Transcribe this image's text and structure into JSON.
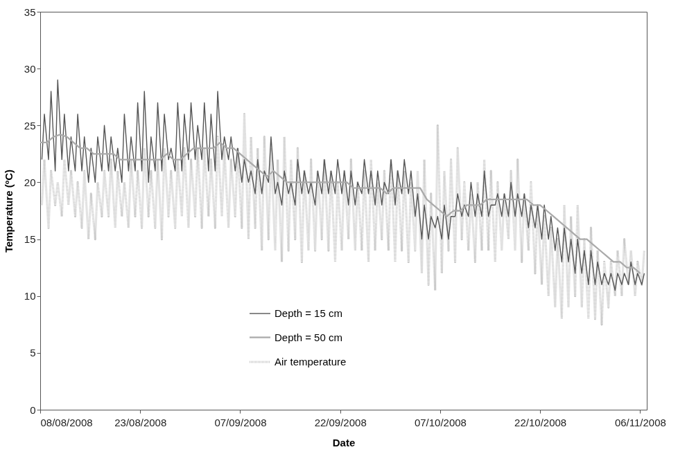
{
  "chart_data": {
    "type": "line",
    "xlabel": "Date",
    "ylabel": "Temperature (ºC)",
    "x": [
      "2008-08-08T06:00",
      "2008-08-08T15:00",
      "2008-08-09T06:00",
      "2008-08-09T15:00",
      "2008-08-10T06:00",
      "2008-08-10T15:00",
      "2008-08-11T06:00",
      "2008-08-11T15:00",
      "2008-08-12T06:00",
      "2008-08-12T15:00",
      "2008-08-13T06:00",
      "2008-08-13T15:00",
      "2008-08-14T06:00",
      "2008-08-14T15:00",
      "2008-08-15T06:00",
      "2008-08-15T15:00",
      "2008-08-16T06:00",
      "2008-08-16T15:00",
      "2008-08-17T06:00",
      "2008-08-17T15:00",
      "2008-08-18T06:00",
      "2008-08-18T15:00",
      "2008-08-19T06:00",
      "2008-08-19T15:00",
      "2008-08-20T06:00",
      "2008-08-20T15:00",
      "2008-08-21T06:00",
      "2008-08-21T15:00",
      "2008-08-22T06:00",
      "2008-08-22T15:00",
      "2008-08-23T06:00",
      "2008-08-23T15:00",
      "2008-08-24T06:00",
      "2008-08-24T15:00",
      "2008-08-25T06:00",
      "2008-08-25T15:00",
      "2008-08-26T06:00",
      "2008-08-26T15:00",
      "2008-08-27T06:00",
      "2008-08-27T15:00",
      "2008-08-28T06:00",
      "2008-08-28T15:00",
      "2008-08-29T06:00",
      "2008-08-29T15:00",
      "2008-08-30T06:00",
      "2008-08-30T15:00",
      "2008-08-31T06:00",
      "2008-08-31T15:00",
      "2008-09-01T06:00",
      "2008-09-01T15:00",
      "2008-09-02T06:00",
      "2008-09-02T15:00",
      "2008-09-03T06:00",
      "2008-09-03T15:00",
      "2008-09-04T06:00",
      "2008-09-04T15:00",
      "2008-09-05T06:00",
      "2008-09-05T15:00",
      "2008-09-06T06:00",
      "2008-09-06T15:00",
      "2008-09-07T06:00",
      "2008-09-07T15:00",
      "2008-09-08T06:00",
      "2008-09-08T15:00",
      "2008-09-09T06:00",
      "2008-09-09T15:00",
      "2008-09-10T06:00",
      "2008-09-10T15:00",
      "2008-09-11T06:00",
      "2008-09-11T15:00",
      "2008-09-12T06:00",
      "2008-09-12T15:00",
      "2008-09-13T06:00",
      "2008-09-13T15:00",
      "2008-09-14T06:00",
      "2008-09-14T15:00",
      "2008-09-15T06:00",
      "2008-09-15T15:00",
      "2008-09-16T06:00",
      "2008-09-16T15:00",
      "2008-09-17T06:00",
      "2008-09-17T15:00",
      "2008-09-18T06:00",
      "2008-09-18T15:00",
      "2008-09-19T06:00",
      "2008-09-19T15:00",
      "2008-09-20T06:00",
      "2008-09-20T15:00",
      "2008-09-21T06:00",
      "2008-09-21T15:00",
      "2008-09-22T06:00",
      "2008-09-22T15:00",
      "2008-09-23T06:00",
      "2008-09-23T15:00",
      "2008-09-24T06:00",
      "2008-09-24T15:00",
      "2008-09-25T06:00",
      "2008-09-25T15:00",
      "2008-09-26T06:00",
      "2008-09-26T15:00",
      "2008-09-27T06:00",
      "2008-09-27T15:00",
      "2008-09-28T06:00",
      "2008-09-28T15:00",
      "2008-09-29T06:00",
      "2008-09-29T15:00",
      "2008-09-30T06:00",
      "2008-09-30T15:00",
      "2008-10-01T06:00",
      "2008-10-01T15:00",
      "2008-10-02T06:00",
      "2008-10-02T15:00",
      "2008-10-03T06:00",
      "2008-10-03T15:00",
      "2008-10-04T06:00",
      "2008-10-04T15:00",
      "2008-10-05T06:00",
      "2008-10-05T15:00",
      "2008-10-06T06:00",
      "2008-10-06T15:00",
      "2008-10-07T06:00",
      "2008-10-07T15:00",
      "2008-10-08T06:00",
      "2008-10-08T15:00",
      "2008-10-09T06:00",
      "2008-10-09T15:00",
      "2008-10-10T06:00",
      "2008-10-10T15:00",
      "2008-10-11T06:00",
      "2008-10-11T15:00",
      "2008-10-12T06:00",
      "2008-10-12T15:00",
      "2008-10-13T06:00",
      "2008-10-13T15:00",
      "2008-10-14T06:00",
      "2008-10-14T15:00",
      "2008-10-15T06:00",
      "2008-10-15T15:00",
      "2008-10-16T06:00",
      "2008-10-16T15:00",
      "2008-10-17T06:00",
      "2008-10-17T15:00",
      "2008-10-18T06:00",
      "2008-10-18T15:00",
      "2008-10-19T06:00",
      "2008-10-19T15:00",
      "2008-10-20T06:00",
      "2008-10-20T15:00",
      "2008-10-21T06:00",
      "2008-10-21T15:00",
      "2008-10-22T06:00",
      "2008-10-22T15:00",
      "2008-10-23T06:00",
      "2008-10-23T15:00",
      "2008-10-24T06:00",
      "2008-10-24T15:00",
      "2008-10-25T06:00",
      "2008-10-25T15:00",
      "2008-10-26T06:00",
      "2008-10-26T15:00",
      "2008-10-27T06:00",
      "2008-10-27T15:00",
      "2008-10-28T06:00",
      "2008-10-28T15:00",
      "2008-10-29T06:00",
      "2008-10-29T15:00",
      "2008-10-30T06:00",
      "2008-10-30T15:00",
      "2008-10-31T06:00",
      "2008-10-31T15:00",
      "2008-11-01T06:00",
      "2008-11-01T15:00",
      "2008-11-02T06:00",
      "2008-11-02T15:00",
      "2008-11-03T06:00",
      "2008-11-03T15:00",
      "2008-11-04T06:00",
      "2008-11-04T15:00",
      "2008-11-05T06:00",
      "2008-11-05T15:00",
      "2008-11-06T06:00",
      "2008-11-06T15:00"
    ],
    "series": [
      {
        "name": "Depth = 15 cm",
        "color": "#555555",
        "line_style": "solid",
        "values": [
          22,
          26,
          22,
          28,
          21,
          29,
          22,
          26,
          21,
          24,
          21,
          26,
          21,
          24,
          20,
          23,
          20,
          24,
          21,
          25,
          21,
          24,
          21,
          23,
          20,
          26,
          21,
          24,
          21,
          27,
          21,
          28,
          20,
          24,
          21,
          27,
          21,
          26,
          22,
          23,
          21,
          27,
          21,
          26,
          22,
          27,
          22,
          25,
          22,
          27,
          21,
          26,
          21,
          28,
          22,
          24,
          22,
          24,
          21,
          23,
          20,
          22,
          20,
          21,
          19,
          22,
          19,
          21,
          20,
          24,
          19,
          20,
          18,
          21,
          19,
          20,
          18,
          22,
          19,
          21,
          19,
          20,
          18,
          21,
          19,
          22,
          19,
          21,
          19,
          22,
          19,
          21,
          18,
          21,
          18,
          20,
          19,
          22,
          19,
          21,
          18,
          21,
          18,
          20,
          19,
          22,
          18,
          21,
          19,
          22,
          19,
          21,
          17,
          19,
          15,
          18,
          15,
          17,
          16,
          17,
          15,
          18,
          15,
          17,
          17,
          19,
          17,
          18,
          17,
          20,
          17,
          19,
          17,
          21,
          17,
          18,
          18,
          19,
          17,
          19,
          17,
          20,
          17,
          19,
          17,
          19,
          16,
          18,
          16,
          18,
          15,
          18,
          15,
          17,
          14,
          16,
          13,
          16,
          13,
          15,
          12,
          15,
          12,
          14,
          11,
          14,
          11,
          13,
          11,
          12,
          11,
          12,
          10.5,
          12,
          11,
          12,
          11,
          13,
          11,
          12,
          11,
          12
        ]
      },
      {
        "name": "Depth = 50 cm",
        "color": "#aaaaaa",
        "line_style": "solid",
        "x": [
          "2008-08-08",
          "2008-08-09",
          "2008-08-10",
          "2008-08-11",
          "2008-08-12",
          "2008-08-13",
          "2008-08-14",
          "2008-08-15",
          "2008-08-16",
          "2008-08-17",
          "2008-08-18",
          "2008-08-19",
          "2008-08-20",
          "2008-08-21",
          "2008-08-22",
          "2008-08-23",
          "2008-08-24",
          "2008-08-25",
          "2008-08-26",
          "2008-08-27",
          "2008-08-28",
          "2008-08-29",
          "2008-08-30",
          "2008-08-31",
          "2008-09-01",
          "2008-09-02",
          "2008-09-03",
          "2008-09-04",
          "2008-09-05",
          "2008-09-06",
          "2008-09-07",
          "2008-09-08",
          "2008-09-09",
          "2008-09-10",
          "2008-09-11",
          "2008-09-12",
          "2008-09-13",
          "2008-09-14",
          "2008-09-15",
          "2008-09-16",
          "2008-09-17",
          "2008-09-18",
          "2008-09-19",
          "2008-09-20",
          "2008-09-21",
          "2008-09-22",
          "2008-09-23",
          "2008-09-24",
          "2008-09-25",
          "2008-09-26",
          "2008-09-27",
          "2008-09-28",
          "2008-09-29",
          "2008-09-30",
          "2008-10-01",
          "2008-10-02",
          "2008-10-03",
          "2008-10-04",
          "2008-10-05",
          "2008-10-06",
          "2008-10-07",
          "2008-10-08",
          "2008-10-09",
          "2008-10-10",
          "2008-10-11",
          "2008-10-12",
          "2008-10-13",
          "2008-10-14",
          "2008-10-15",
          "2008-10-16",
          "2008-10-17",
          "2008-10-18",
          "2008-10-19",
          "2008-10-20",
          "2008-10-21",
          "2008-10-22",
          "2008-10-23",
          "2008-10-24",
          "2008-10-25",
          "2008-10-26",
          "2008-10-27",
          "2008-10-28",
          "2008-10-29",
          "2008-10-30",
          "2008-10-31",
          "2008-11-01",
          "2008-11-02",
          "2008-11-03",
          "2008-11-04",
          "2008-11-05",
          "2008-11-06"
        ],
        "values": [
          23.5,
          23.5,
          24,
          24.2,
          24,
          23.5,
          23,
          23,
          22.5,
          22.5,
          22.5,
          22.5,
          22,
          22,
          22,
          22,
          22,
          22,
          22,
          22.5,
          22,
          22,
          22.5,
          23,
          23,
          23,
          23,
          23.5,
          23,
          23,
          22.5,
          22,
          21.5,
          21,
          20.5,
          21,
          20.5,
          20,
          20,
          20,
          20,
          20,
          20,
          20,
          20,
          20,
          20,
          19.5,
          19.5,
          19.5,
          19.5,
          19.5,
          19,
          19.5,
          19.5,
          19.5,
          19.5,
          19.5,
          18.5,
          18,
          17.5,
          17,
          17.5,
          17.5,
          18,
          18,
          18,
          18.5,
          18.5,
          18.5,
          18.5,
          18.5,
          18.5,
          18.5,
          18,
          18,
          17.5,
          17,
          16.5,
          16,
          15.5,
          15,
          15,
          14.5,
          14,
          13.5,
          13,
          13,
          12.5,
          12.5,
          12
        ]
      },
      {
        "name": "Air temperature",
        "color": "#c8c8c8",
        "line_style": "dotted",
        "values": [
          18,
          22,
          16,
          21,
          18,
          20,
          17,
          22,
          18,
          21,
          17,
          20,
          16,
          21,
          15,
          19,
          15,
          20,
          17,
          21,
          17,
          22,
          16,
          21,
          17,
          20,
          16,
          22,
          17,
          21,
          16,
          23,
          17,
          21,
          16,
          22,
          15,
          23,
          17,
          21,
          16,
          22,
          17,
          23,
          16,
          22,
          17,
          23,
          16,
          23,
          17,
          22,
          16,
          24,
          17,
          23,
          16,
          22,
          17,
          23,
          16,
          26,
          15,
          24,
          16,
          23,
          14,
          24,
          15,
          23,
          14,
          22,
          13,
          24,
          14,
          22,
          15,
          23,
          13,
          21,
          14,
          22,
          14,
          21,
          15,
          22,
          14,
          21,
          13,
          20,
          14,
          21,
          15,
          22,
          14,
          20,
          14,
          21,
          13,
          22,
          14,
          20,
          15,
          21,
          14,
          22,
          13,
          21,
          14,
          21,
          13,
          20,
          14,
          21,
          12,
          22,
          11,
          19,
          10.5,
          25,
          12,
          21,
          14,
          22,
          13,
          23,
          15,
          20,
          14,
          19,
          13,
          20,
          14,
          22,
          14,
          21,
          13,
          20,
          14,
          19,
          15,
          21,
          14,
          22,
          13,
          19,
          14,
          20,
          12,
          18,
          11,
          17,
          10,
          16,
          9,
          15,
          8,
          18,
          9,
          17,
          10,
          18,
          9,
          15,
          8,
          16,
          8,
          14,
          7.5,
          13,
          9,
          13,
          10,
          14,
          10,
          15,
          11,
          14,
          10,
          13,
          11,
          14
        ]
      }
    ],
    "xlim": [
      "2008-08-08",
      "2008-11-07"
    ],
    "xticks": [
      {
        "value": "2008-08-08",
        "label": "08/08/2008"
      },
      {
        "value": "2008-08-23",
        "label": "23/08/2008"
      },
      {
        "value": "2008-09-07",
        "label": "07/09/2008"
      },
      {
        "value": "2008-09-22",
        "label": "22/09/2008"
      },
      {
        "value": "2008-10-07",
        "label": "07/10/2008"
      },
      {
        "value": "2008-10-22",
        "label": "22/10/2008"
      },
      {
        "value": "2008-11-06",
        "label": "06/11/2008"
      }
    ],
    "ylim": [
      0,
      35
    ],
    "yticks": [
      0,
      5,
      10,
      15,
      20,
      25,
      30,
      35
    ],
    "grid": false,
    "legend": "bottom",
    "marker": "none"
  }
}
